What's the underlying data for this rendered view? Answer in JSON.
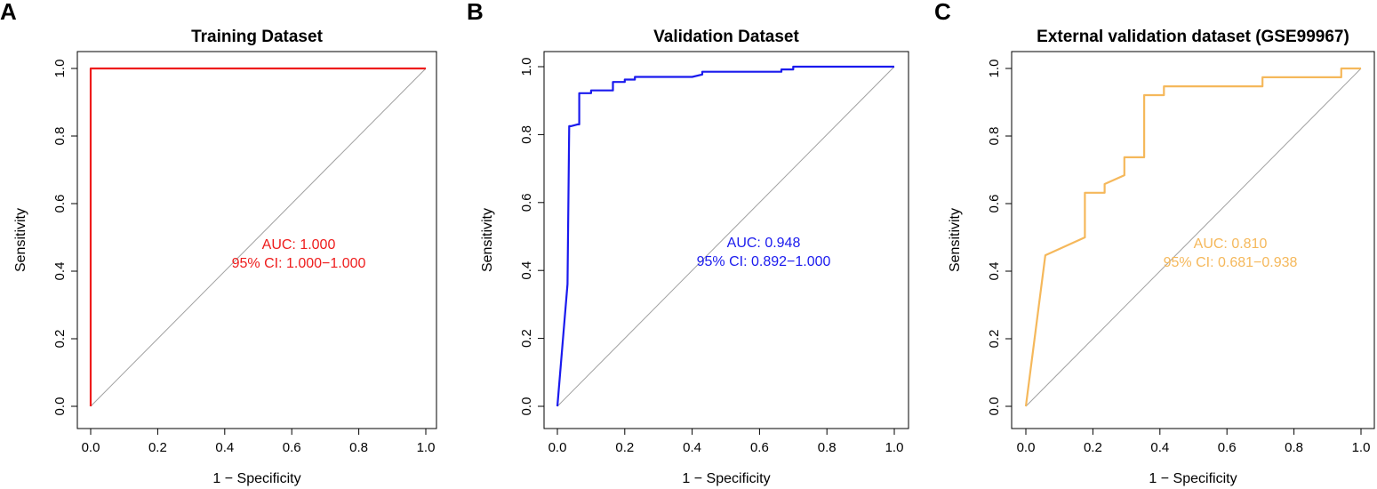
{
  "chart_data": [
    {
      "type": "line",
      "panel": "A",
      "title": "Training Dataset",
      "xlabel": "1 − Specificity",
      "ylabel": "Sensitivity",
      "xlim": [
        0,
        1
      ],
      "ylim": [
        0,
        1
      ],
      "xticks": [
        "0.0",
        "0.2",
        "0.4",
        "0.6",
        "0.8",
        "1.0"
      ],
      "yticks": [
        "0.0",
        "0.2",
        "0.4",
        "0.6",
        "0.8",
        "1.0"
      ],
      "color": "#ee1c1c",
      "auc_text": "AUC: 1.000",
      "ci_text": "95% CI: 1.000−1.000",
      "roc": {
        "x": [
          0,
          0,
          1
        ],
        "y": [
          0,
          1,
          1
        ]
      }
    },
    {
      "type": "line",
      "panel": "B",
      "title": "Validation Dataset",
      "xlabel": "1 − Specificity",
      "ylabel": "Sensitivity",
      "xlim": [
        0,
        1
      ],
      "ylim": [
        0,
        1
      ],
      "xticks": [
        "0.0",
        "0.2",
        "0.4",
        "0.6",
        "0.8",
        "1.0"
      ],
      "yticks": [
        "0.0",
        "0.2",
        "0.4",
        "0.6",
        "0.8",
        "1.0"
      ],
      "color": "#1a1aee",
      "auc_text": "AUC: 0.948",
      "ci_text": "95% CI: 0.892−1.000",
      "roc": {
        "x": [
          0,
          0.03,
          0.035,
          0.04,
          0.06,
          0.065,
          0.065,
          0.1,
          0.1,
          0.165,
          0.165,
          0.2,
          0.2,
          0.23,
          0.23,
          0.4,
          0.43,
          0.43,
          0.665,
          0.665,
          0.7,
          0.7,
          1
        ],
        "y": [
          0,
          0.36,
          0.825,
          0.825,
          0.83,
          0.83,
          0.922,
          0.922,
          0.93,
          0.93,
          0.955,
          0.955,
          0.962,
          0.962,
          0.97,
          0.97,
          0.977,
          0.985,
          0.985,
          0.992,
          0.992,
          1,
          1
        ]
      }
    },
    {
      "type": "line",
      "panel": "C",
      "title": "External validation dataset (GSE99967)",
      "xlabel": "1 − Specificity",
      "ylabel": "Sensitivity",
      "xlim": [
        0,
        1
      ],
      "ylim": [
        0,
        1
      ],
      "xticks": [
        "0.0",
        "0.2",
        "0.4",
        "0.6",
        "0.8",
        "1.0"
      ],
      "yticks": [
        "0.0",
        "0.2",
        "0.4",
        "0.6",
        "0.8",
        "1.0"
      ],
      "color": "#f5b85b",
      "auc_text": "AUC: 0.810",
      "ci_text": "95% CI: 0.681−0.938",
      "roc": {
        "x": [
          0,
          0.058,
          0.176,
          0.176,
          0.235,
          0.235,
          0.294,
          0.294,
          0.353,
          0.353,
          0.412,
          0.412,
          0.706,
          0.706,
          0.941,
          0.941,
          1
        ],
        "y": [
          0,
          0.447,
          0.5,
          0.632,
          0.632,
          0.658,
          0.684,
          0.737,
          0.737,
          0.921,
          0.921,
          0.947,
          0.947,
          0.974,
          0.974,
          1,
          1
        ]
      }
    }
  ]
}
